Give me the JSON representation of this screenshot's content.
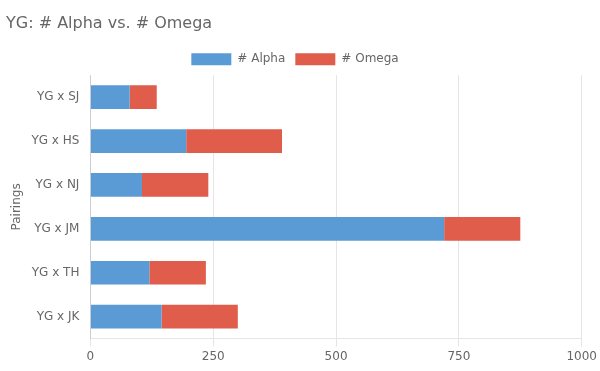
{
  "chart_data": {
    "type": "bar",
    "orientation": "horizontal",
    "stacked": true,
    "title": "YG: # Alpha vs. # Omega",
    "ylabel": "Pairings",
    "categories": [
      "YG x JK",
      "YG x TH",
      "YG x JM",
      "YG x NJ",
      "YG x HS",
      "YG x SJ"
    ],
    "series": [
      {
        "name": "# Alpha",
        "color": "#5b9bd5",
        "values": [
          145,
          120,
          720,
          105,
          195,
          80
        ]
      },
      {
        "name": "# Omega",
        "color": "#e05c4b",
        "values": [
          155,
          115,
          155,
          135,
          195,
          55
        ]
      }
    ],
    "xlim": [
      0,
      1000
    ],
    "xticks": [
      0,
      250,
      500,
      750,
      1000
    ],
    "grid": "x",
    "legend": "top"
  }
}
